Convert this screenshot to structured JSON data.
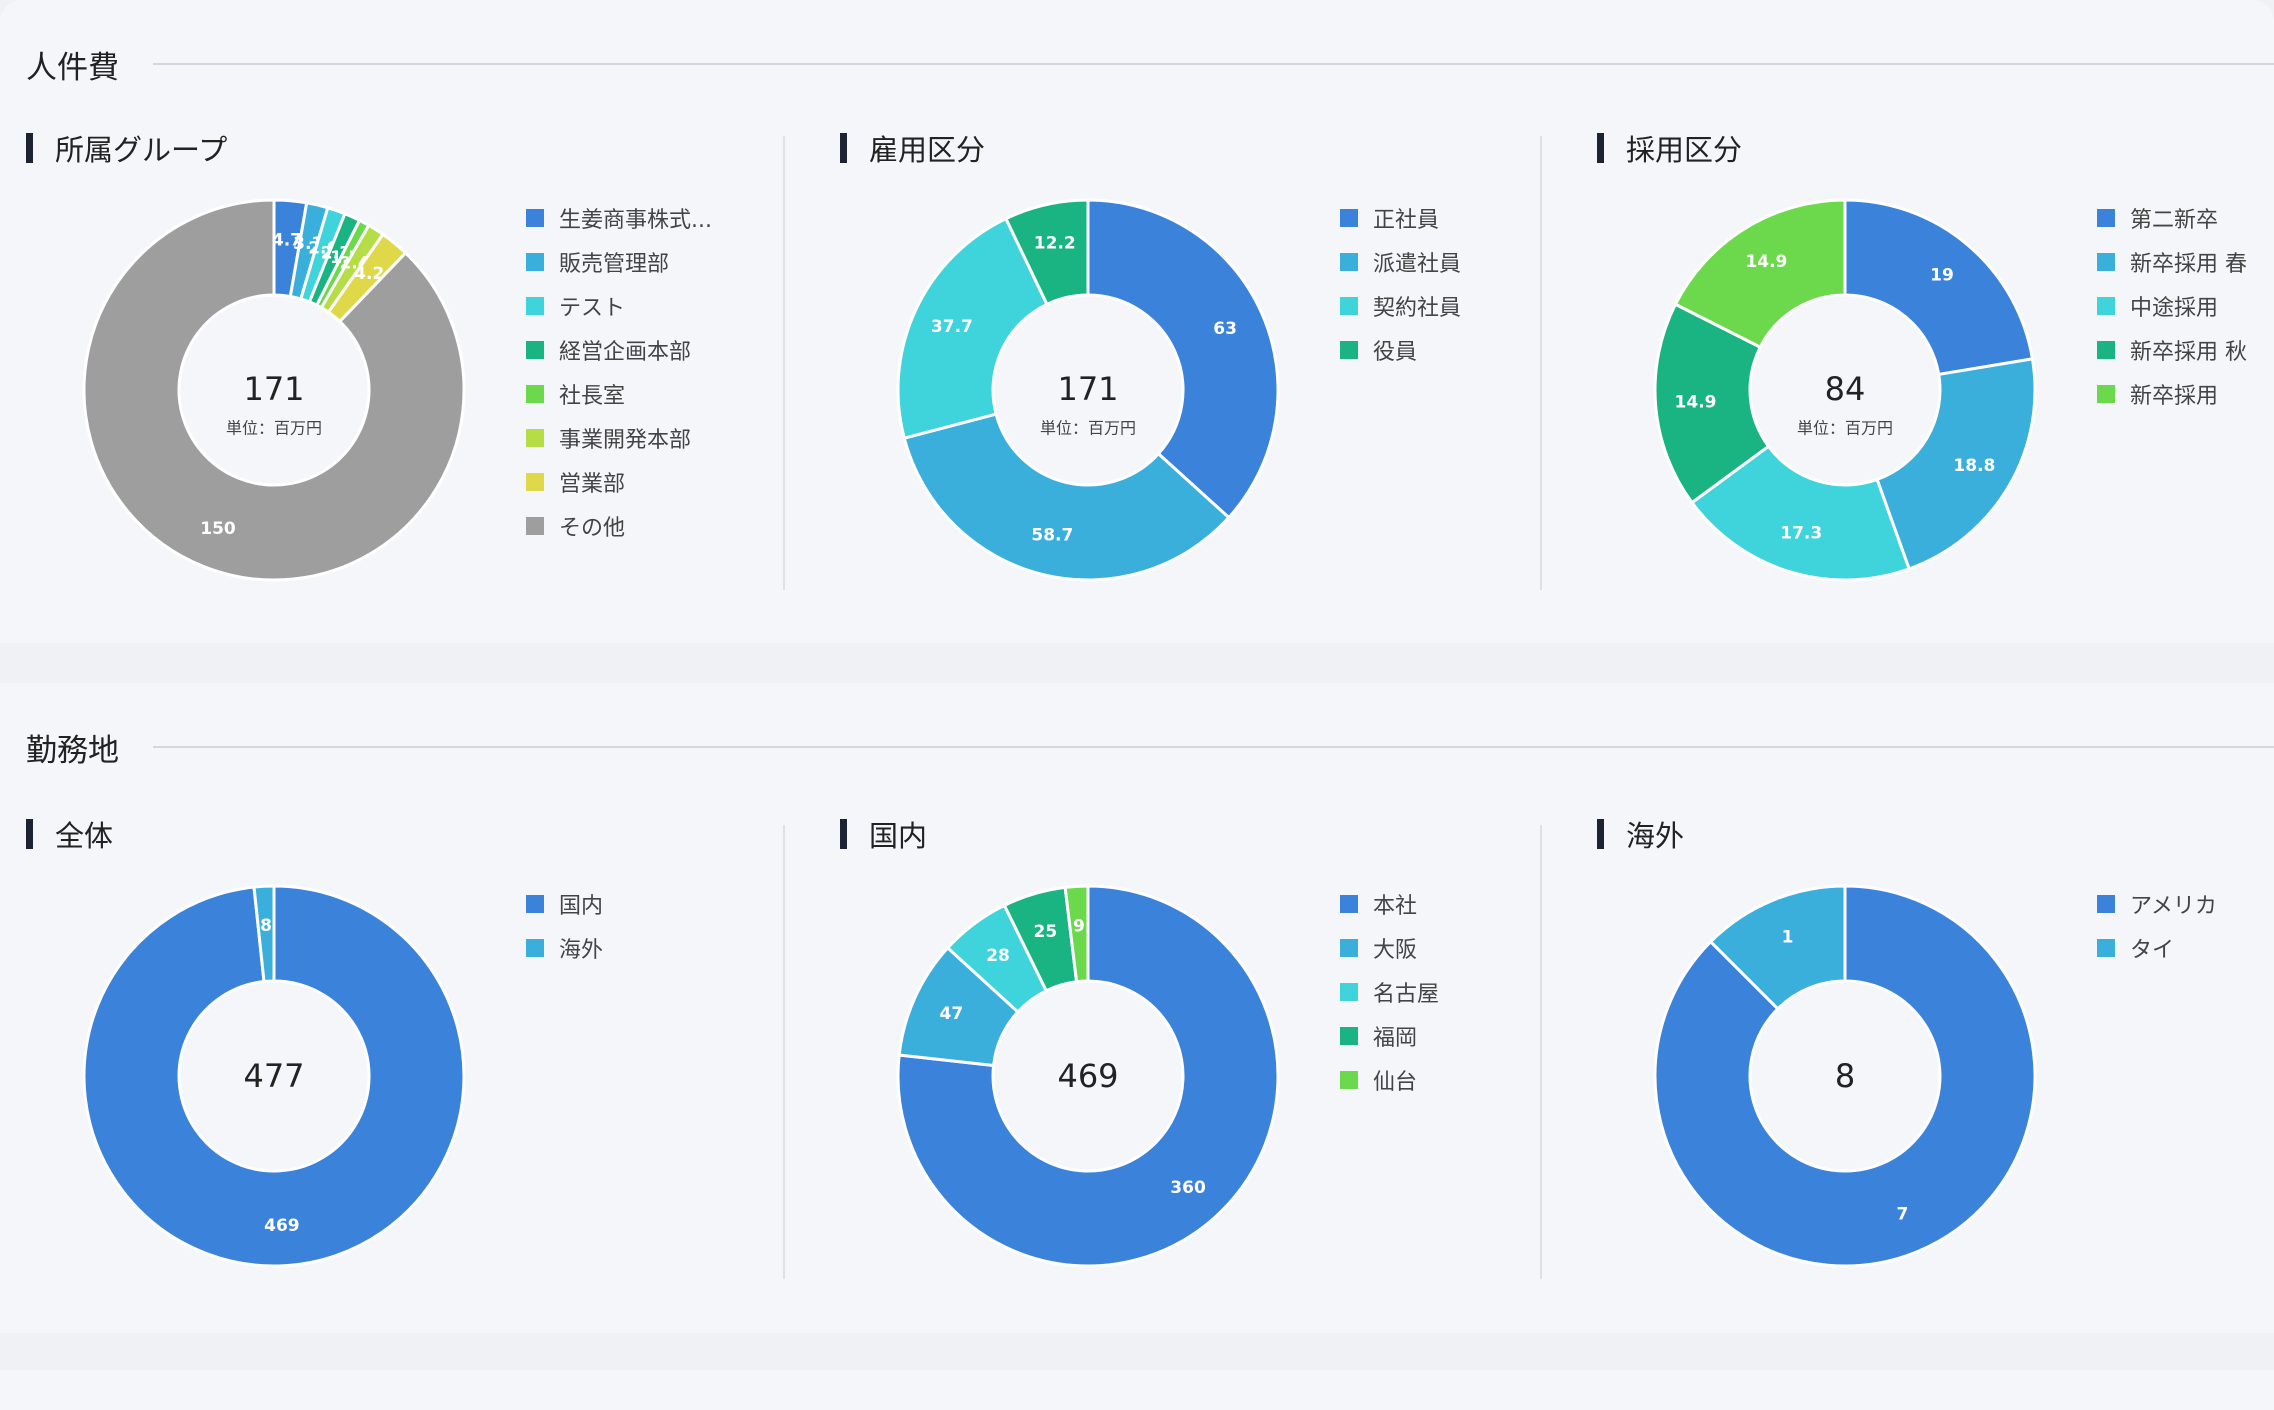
{
  "sections": [
    {
      "title": "人件費"
    },
    {
      "title": "勤務地"
    }
  ],
  "colors": {
    "blue": "#3b82db",
    "sky": "#3aafdc",
    "cyan": "#3fd3dc",
    "teal": "#19b482",
    "green": "#6cd94c",
    "lime": "#b5dd45",
    "yellow": "#dfd94a",
    "gray": "#9e9e9e"
  },
  "chart_data": [
    {
      "type": "pie",
      "section": "人件費",
      "title": "所属グループ",
      "total": "171",
      "unit": "単位：百万円",
      "legend_placement": "right",
      "categories": [
        "生姜商事株式...",
        "販売管理部",
        "テスト",
        "経営企画本部",
        "社長室",
        "事業開発本部",
        "営業部",
        "その他"
      ],
      "values": [
        4.7,
        3.1,
        2.6,
        2.3,
        1.5,
        2.4,
        4.2,
        150
      ],
      "labels": [
        "4.7",
        "3.1",
        "2.6",
        "2.3",
        "1.5",
        "2.4",
        "4.2",
        "150"
      ],
      "colors": [
        "#3b82db",
        "#3aafdc",
        "#3fd3dc",
        "#19b482",
        "#6cd94c",
        "#b5dd45",
        "#dfd94a",
        "#9e9e9e"
      ]
    },
    {
      "type": "pie",
      "section": "人件費",
      "title": "雇用区分",
      "total": "171",
      "unit": "単位：百万円",
      "legend_placement": "right",
      "categories": [
        "正社員",
        "派遣社員",
        "契約社員",
        "役員"
      ],
      "values": [
        63,
        58.7,
        37.7,
        12.2
      ],
      "labels": [
        "63",
        "58.7",
        "37.7",
        "12.2"
      ],
      "colors": [
        "#3b82db",
        "#3aafdc",
        "#3fd3dc",
        "#19b482"
      ]
    },
    {
      "type": "pie",
      "section": "人件費",
      "title": "採用区分",
      "total": "84",
      "unit": "単位：百万円",
      "legend_placement": "right",
      "categories": [
        "第二新卒",
        "新卒採用 春",
        "中途採用",
        "新卒採用 秋",
        "新卒採用"
      ],
      "values": [
        19,
        18.8,
        17.3,
        14.9,
        14.9
      ],
      "labels": [
        "19",
        "18.8",
        "17.3",
        "14.9",
        "14.9"
      ],
      "colors": [
        "#3b82db",
        "#3aafdc",
        "#3fd3dc",
        "#19b482",
        "#6cd94c"
      ]
    },
    {
      "type": "pie",
      "section": "勤務地",
      "title": "全体",
      "total": "477",
      "legend_placement": "right",
      "categories": [
        "国内",
        "海外"
      ],
      "values": [
        469,
        8
      ],
      "labels": [
        "469",
        "8"
      ],
      "colors": [
        "#3b82db",
        "#3aafdc"
      ]
    },
    {
      "type": "pie",
      "section": "勤務地",
      "title": "国内",
      "total": "469",
      "legend_placement": "right",
      "categories": [
        "本社",
        "大阪",
        "名古屋",
        "福岡",
        "仙台"
      ],
      "values": [
        360,
        47,
        28,
        25,
        9
      ],
      "labels": [
        "360",
        "47",
        "28",
        "25",
        "9"
      ],
      "colors": [
        "#3b82db",
        "#3aafdc",
        "#3fd3dc",
        "#19b482",
        "#6cd94c"
      ]
    },
    {
      "type": "pie",
      "section": "勤務地",
      "title": "海外",
      "total": "8",
      "legend_placement": "right",
      "categories": [
        "アメリカ",
        "タイ"
      ],
      "values": [
        7,
        1
      ],
      "labels": [
        "7",
        "1"
      ],
      "colors": [
        "#3b82db",
        "#3aafdc"
      ]
    }
  ]
}
